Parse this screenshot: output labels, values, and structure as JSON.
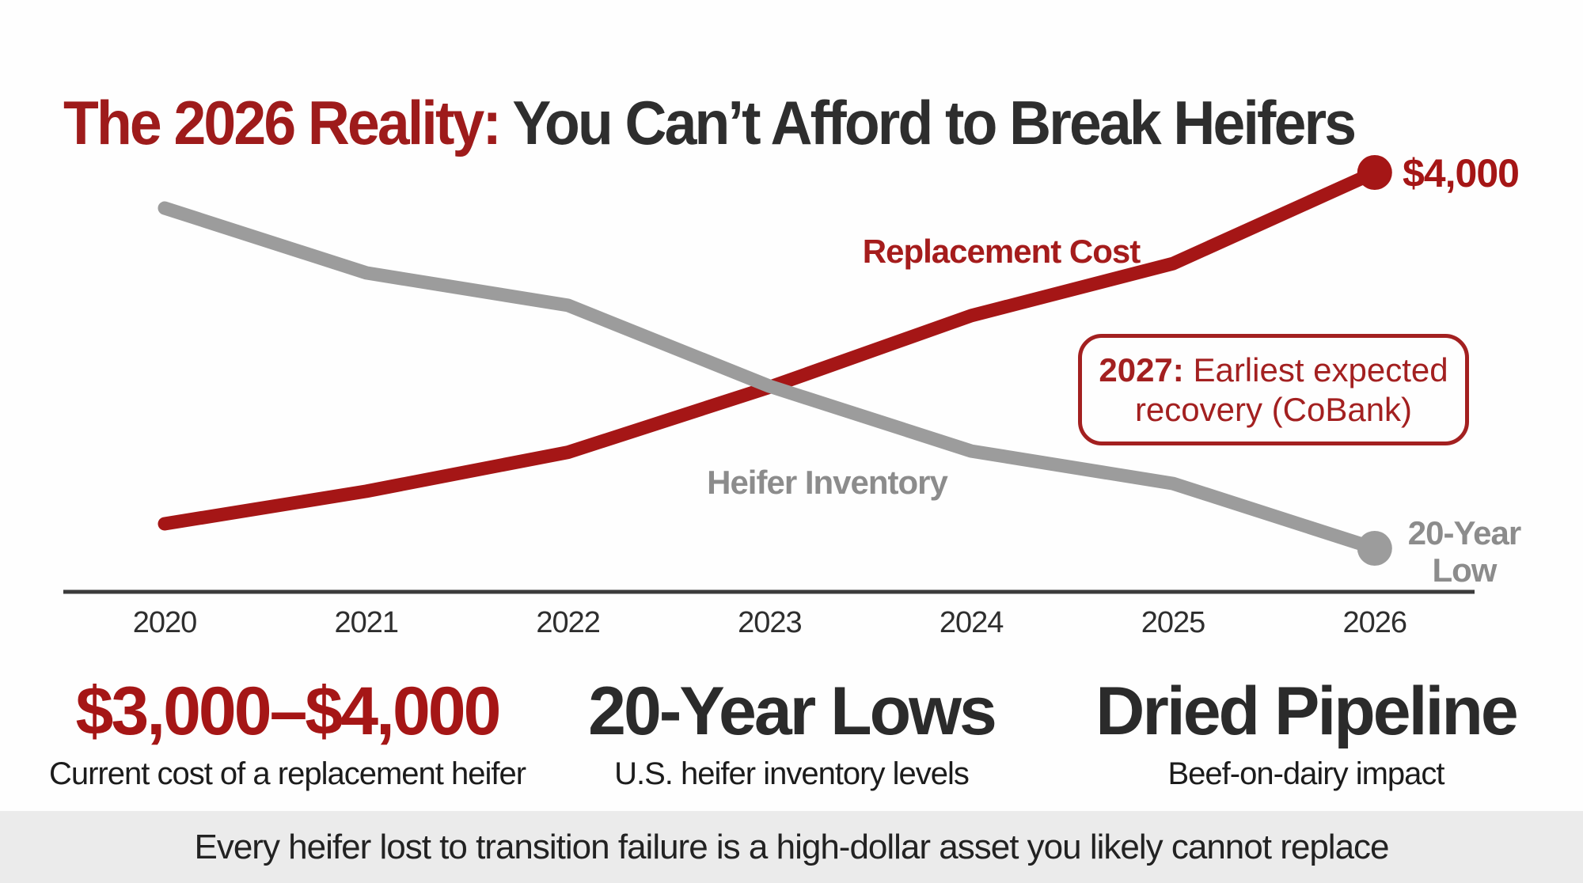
{
  "title": {
    "highlight": "The 2026 Reality:",
    "rest": " You Can’t Afford to Break Heifers"
  },
  "colors": {
    "accent_red": "#9e1b1b",
    "line_red": "#a51616",
    "line_gray": "#9c9c9c",
    "label_gray": "#8c8c8c",
    "axis": "#3b3b3b",
    "dark_text": "#2e2e2e",
    "footer_bg": "#ebebeb"
  },
  "chart_data": {
    "type": "line",
    "x": [
      2020,
      2021,
      2022,
      2023,
      2024,
      2025,
      2026
    ],
    "x_tick_labels": [
      "2020",
      "2021",
      "2022",
      "2023",
      "2024",
      "2025",
      "2026"
    ],
    "series": [
      {
        "name": "Replacement Cost",
        "color": "#a51616",
        "values": [
          1300,
          1550,
          1850,
          2350,
          2900,
          3300,
          4000
        ],
        "end_point_label": "$4,000"
      },
      {
        "name": "Heifer Inventory",
        "color": "#9c9c9c",
        "values": [
          100,
          96,
          94,
          89,
          85,
          83,
          79
        ],
        "end_point_label": "20-Year Low"
      }
    ],
    "annotation": {
      "year_bold": "2027:",
      "text": " Earliest expected recovery (CoBank)"
    },
    "y_axis": "none (schematic, no tick labels shown)",
    "grid": false,
    "legend_position": "inline labels on lines"
  },
  "stats": [
    {
      "value": "$3,000–$4,000",
      "label": "Current cost of a replacement heifer",
      "value_color": "#a51616"
    },
    {
      "value": "20-Year Lows",
      "label": "U.S. heifer inventory levels",
      "value_color": "#2b2b2b"
    },
    {
      "value": "Dried Pipeline",
      "label": "Beef-on-dairy impact",
      "value_color": "#2b2b2b"
    }
  ],
  "footer": {
    "text": "Every heifer lost to transition failure is a high-dollar asset you likely cannot replace"
  }
}
